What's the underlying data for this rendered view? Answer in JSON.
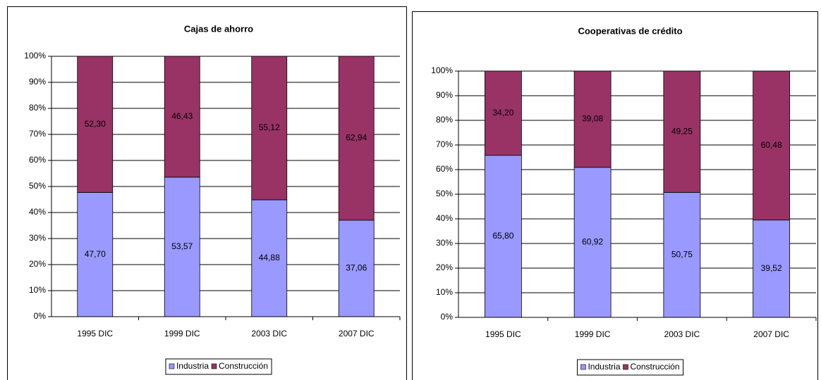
{
  "chart_data": [
    {
      "type": "bar",
      "stacked": true,
      "title": "Cajas de ahorro",
      "categories": [
        "1995 DIC",
        "1999 DIC",
        "2003 DIC",
        "2007 DIC"
      ],
      "series": [
        {
          "name": "Industria",
          "color": "#9999ff",
          "values": [
            47.7,
            53.57,
            44.88,
            37.06
          ],
          "value_labels": [
            "47,70",
            "53,57",
            "44,88",
            "37,06"
          ]
        },
        {
          "name": "Construcción",
          "color": "#993366",
          "values": [
            52.3,
            46.43,
            55.12,
            62.94
          ],
          "value_labels": [
            "52,30",
            "46,43",
            "55,12",
            "62,94"
          ]
        }
      ],
      "ylim": [
        0,
        100
      ],
      "yticks": [
        {
          "value": 0,
          "label": "0%"
        },
        {
          "value": 10,
          "label": "10%"
        },
        {
          "value": 20,
          "label": "20%"
        },
        {
          "value": 30,
          "label": "30%"
        },
        {
          "value": 40,
          "label": "40%"
        },
        {
          "value": 50,
          "label": "50%"
        },
        {
          "value": 60,
          "label": "60%"
        },
        {
          "value": 70,
          "label": "70%"
        },
        {
          "value": 80,
          "label": "80%"
        },
        {
          "value": 90,
          "label": "90%"
        },
        {
          "value": 100,
          "label": "100%"
        }
      ],
      "grid": true,
      "legend": "bottom"
    },
    {
      "type": "bar",
      "stacked": true,
      "title": "Cooperativas de crédito",
      "categories": [
        "1995 DIC",
        "1999 DIC",
        "2003 DIC",
        "2007 DIC"
      ],
      "series": [
        {
          "name": "Industria",
          "color": "#9999ff",
          "values": [
            65.8,
            60.92,
            50.75,
            39.52
          ],
          "value_labels": [
            "65,80",
            "60,92",
            "50,75",
            "39,52"
          ]
        },
        {
          "name": "Construcción",
          "color": "#993366",
          "values": [
            34.2,
            39.08,
            49.25,
            60.48
          ],
          "value_labels": [
            "34,20",
            "39,08",
            "49,25",
            "60,48"
          ]
        }
      ],
      "ylim": [
        0,
        100
      ],
      "yticks": [
        {
          "value": 0,
          "label": "0%"
        },
        {
          "value": 10,
          "label": "10%"
        },
        {
          "value": 20,
          "label": "20%"
        },
        {
          "value": 30,
          "label": "30%"
        },
        {
          "value": 40,
          "label": "40%"
        },
        {
          "value": 50,
          "label": "50%"
        },
        {
          "value": 60,
          "label": "60%"
        },
        {
          "value": 70,
          "label": "70%"
        },
        {
          "value": 80,
          "label": "80%"
        },
        {
          "value": 90,
          "label": "90%"
        },
        {
          "value": 100,
          "label": "100%"
        }
      ],
      "grid": true,
      "legend": "bottom"
    }
  ]
}
